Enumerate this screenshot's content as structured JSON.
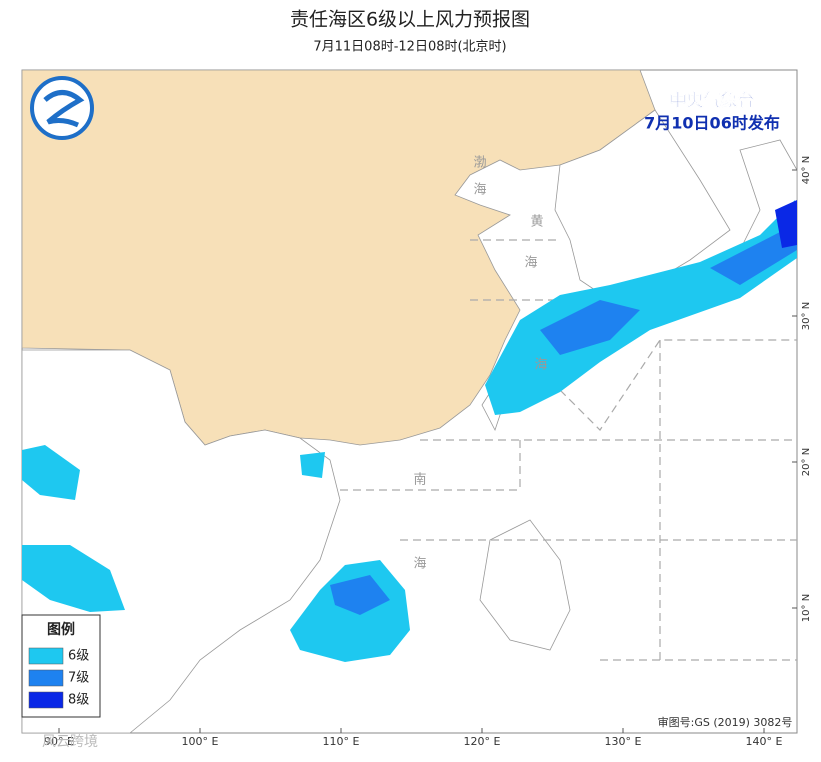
{
  "header": {
    "title": "责任海区6级以上风力预报图",
    "subtitle": "7月11日08时-12日08时(北京时)"
  },
  "issuer": {
    "agency": "中央气象台",
    "issued": "7月10日06时发布"
  },
  "sea_labels": [
    "渤",
    "海",
    "黄",
    "海",
    "海",
    "南",
    "海"
  ],
  "lon_labels": [
    {
      "value": 90,
      "label": "90° E"
    },
    {
      "value": 100,
      "label": "100° E"
    },
    {
      "value": 110,
      "label": "110° E"
    },
    {
      "value": 120,
      "label": "120° E"
    },
    {
      "value": 130,
      "label": "130° E"
    },
    {
      "value": 140,
      "label": "140° E"
    }
  ],
  "lat_labels": [
    {
      "value": 40,
      "label": "40° N"
    },
    {
      "value": 30,
      "label": "30° N"
    },
    {
      "value": 20,
      "label": "20° N"
    },
    {
      "value": 10,
      "label": "10° N"
    }
  ],
  "legend": {
    "title": "图例",
    "items": [
      {
        "label": "6级",
        "color": "#1ec8f0"
      },
      {
        "label": "7级",
        "color": "#1e82f0"
      },
      {
        "label": "8级",
        "color": "#0a28e6"
      }
    ]
  },
  "footer": {
    "approval": "审图号:GS (2019) 3082号",
    "watermark": "风云跨境"
  }
}
